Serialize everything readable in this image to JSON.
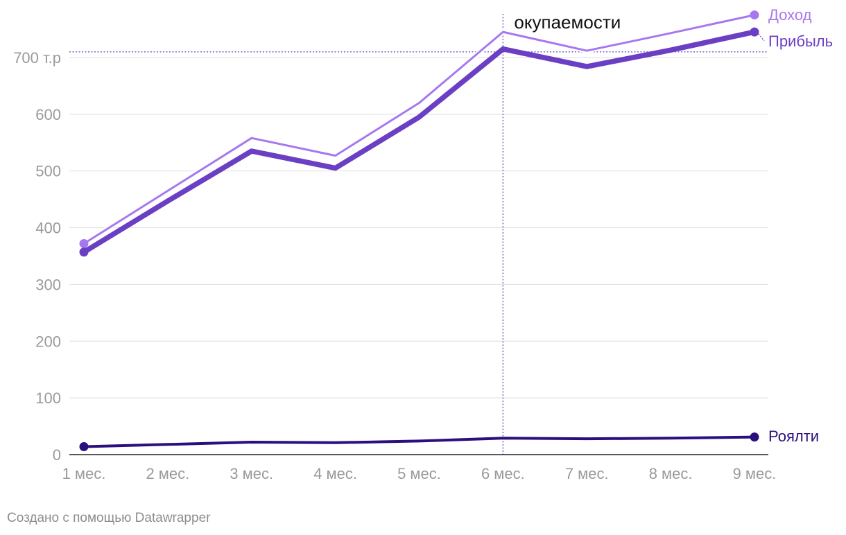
{
  "chart_data": {
    "type": "line",
    "title": "",
    "xlabel": "",
    "ylabel": "",
    "categories": [
      "1 мес.",
      "2 мес.",
      "3 мес.",
      "4 мес.",
      "5 мес.",
      "6 мес.",
      "7 мес.",
      "8 мес.",
      "9 мес."
    ],
    "series": [
      {
        "name": "Доход",
        "color": "#a678f0",
        "values": [
          372,
          465,
          558,
          527,
          620,
          745,
          712,
          743,
          775
        ]
      },
      {
        "name": "Прибыль",
        "color": "#6b3fc4",
        "values": [
          357,
          447,
          535,
          505,
          595,
          715,
          684,
          713,
          745
        ]
      },
      {
        "name": "Роялти",
        "color": "#2b0f7f",
        "values": [
          14,
          18,
          22,
          21,
          24,
          29,
          28,
          29,
          31
        ]
      }
    ],
    "ylim": [
      0,
      775
    ],
    "yticks": [
      0,
      100,
      200,
      300,
      400,
      500,
      600,
      700
    ],
    "ytick_labels": [
      "0",
      "100",
      "200",
      "300",
      "400",
      "500",
      "600",
      "700 т.р"
    ],
    "grid": true,
    "legend": "inline labels at line ends (right)",
    "reference_lines": {
      "horizontal_value": 710,
      "vertical_category": "6 мес.",
      "annotation": "окупаемости"
    }
  },
  "footer": {
    "credit": "Создано с помощью Datawrapper"
  }
}
